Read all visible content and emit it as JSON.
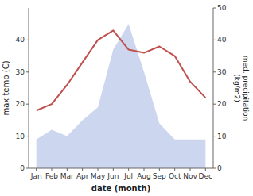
{
  "chart_data": {
    "type": "line",
    "categories": [
      "Jan",
      "Feb",
      "Mar",
      "Apr",
      "May",
      "Jun",
      "Jul",
      "Aug",
      "Sep",
      "Oct",
      "Nov",
      "Dec"
    ],
    "x_label": "date (month)",
    "y_label": "max temp (C)",
    "y2_label": "med. precipitation\n(kg/m2)",
    "series": [
      {
        "type": "area",
        "axis": "y2",
        "color": "#b8c4e8",
        "values": [
          9,
          12,
          10,
          15,
          19,
          37,
          45,
          30,
          14,
          9,
          9,
          9
        ]
      },
      {
        "type": "line",
        "color": "#c0504d",
        "values": [
          18,
          20,
          26,
          33,
          40,
          43,
          37,
          36,
          38,
          35,
          27,
          22
        ]
      }
    ],
    "ylim": [
      0,
      50
    ],
    "yticks": [
      0,
      10,
      20,
      30,
      40
    ],
    "y2lim": [
      0,
      50
    ],
    "y2ticks": [
      0,
      10,
      20,
      30,
      40,
      50
    ]
  }
}
